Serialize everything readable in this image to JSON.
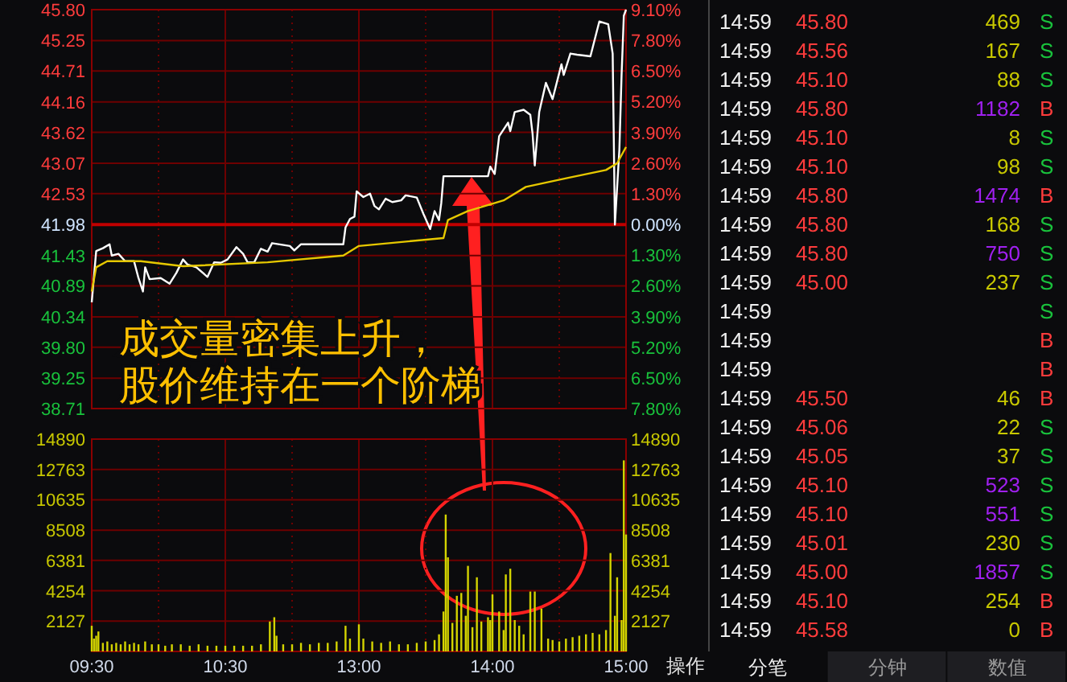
{
  "chart_data": [
    {
      "type": "line",
      "categories": [
        null,
        null,
        null,
        null,
        null,
        null,
        null,
        null,
        null,
        null,
        null,
        null,
        null,
        null,
        null,
        null,
        null,
        null,
        null,
        null,
        null,
        null,
        null,
        null,
        null,
        null,
        null,
        null,
        null,
        null,
        null,
        null,
        null,
        null,
        null,
        null,
        null,
        null,
        null,
        null,
        null,
        null,
        null,
        null,
        null,
        null,
        null,
        null,
        null,
        null,
        null,
        null,
        null,
        null,
        null,
        null,
        null,
        null,
        null,
        null,
        null,
        null,
        null,
        null,
        null,
        null,
        null,
        null,
        null,
        null,
        null,
        null,
        null,
        null,
        null,
        null,
        null,
        null,
        null,
        null,
        null,
        null,
        null,
        null,
        null,
        null,
        null,
        null,
        null,
        null,
        null,
        null,
        null,
        null,
        null,
        null,
        null,
        null,
        null,
        null,
        null,
        null,
        null,
        null,
        null,
        null,
        null,
        null,
        null,
        null,
        null,
        null,
        null,
        null,
        null,
        null,
        null,
        null,
        null,
        null,
        null,
        null,
        null,
        null,
        null,
        null,
        null,
        null,
        null,
        null,
        null,
        null,
        null,
        null,
        null,
        null,
        null,
        null,
        null,
        null,
        null,
        null,
        null,
        null,
        null,
        null,
        null,
        null,
        null,
        null,
        null,
        null,
        null,
        null,
        null,
        null,
        null,
        null,
        null,
        null,
        null,
        null,
        null,
        null,
        null,
        null,
        null,
        null,
        null,
        null,
        null,
        null,
        null,
        null,
        null,
        null,
        null,
        null,
        null,
        null,
        null,
        null,
        null,
        null,
        null,
        null,
        null,
        null,
        null,
        null,
        null,
        null,
        null,
        null,
        null,
        null,
        null,
        null,
        null,
        null,
        null,
        null,
        null,
        null,
        null,
        null,
        null,
        null,
        null,
        null,
        null,
        null,
        null,
        null,
        null,
        null,
        null,
        null,
        null,
        null,
        null,
        null,
        null,
        null,
        null,
        null,
        null,
        null,
        null,
        null,
        null,
        null,
        null,
        null,
        null,
        null,
        null,
        null,
        null,
        null,
        null
      ],
      "series": [
        {
          "color": "#ffffff",
          "values": [
            40.6,
            null,
            41.51,
            null,
            null,
            41.56,
            null,
            null,
            41.63,
            41.43,
            null,
            null,
            41.46,
            null,
            null,
            41.33,
            null,
            null,
            null,
            41.33,
            null,
            41.03,
            null,
            40.79,
            41.22,
            null,
            41.01,
            null,
            null,
            null,
            null,
            41.03,
            null,
            null,
            null,
            40.93,
            null,
            null,
            41.12,
            null,
            null,
            41.36,
            null,
            41.27,
            null,
            null,
            null,
            41.22,
            null,
            null,
            null,
            null,
            41.05,
            null,
            null,
            41.31,
            null,
            null,
            41.3,
            null,
            null,
            41.36,
            null,
            null,
            null,
            41.58,
            null,
            null,
            41.46,
            null,
            41.31,
            null,
            null,
            41.31,
            null,
            null,
            41.55,
            null,
            null,
            41.5,
            null,
            41.65,
            null,
            null,
            null,
            null,
            null,
            null,
            null,
            41.6,
            null,
            41.52,
            null,
            null,
            41.63,
            null,
            null,
            null,
            null,
            null,
            null,
            null,
            null,
            null,
            null,
            null,
            null,
            null,
            null,
            null,
            null,
            null,
            null,
            41.63,
            41.93,
            null,
            42.08,
            null,
            42.12,
            42.57,
            null,
            null,
            42.47,
            null,
            null,
            42.53,
            null,
            42.31,
            null,
            42.25,
            null,
            null,
            42.44,
            null,
            null,
            42.38,
            null,
            null,
            null,
            42.41,
            null,
            42.5,
            null,
            null,
            null,
            null,
            42.46,
            null,
            null,
            42.17,
            null,
            null,
            41.9,
            null,
            42.22,
            null,
            42.06,
            42.36,
            42.84,
            null,
            null,
            null,
            null,
            null,
            null,
            null,
            42.84,
            null,
            null,
            null,
            null,
            null,
            null,
            null,
            null,
            null,
            null,
            null,
            42.84,
            43.01,
            null,
            42.88,
            null,
            43.55,
            null,
            null,
            null,
            43.79,
            43.64,
            null,
            43.98,
            null,
            null,
            null,
            44.02,
            null,
            null,
            43.93,
            43.6,
            43.03,
            null,
            43.98,
            null,
            null,
            44.5,
            null,
            null,
            44.21,
            null,
            null,
            null,
            44.83,
            44.64,
            null,
            null,
            45.02,
            null,
            null,
            45.0,
            null,
            null,
            null,
            null,
            null,
            44.97,
            null,
            null,
            null,
            45.59,
            null,
            null,
            null,
            45.54,
            null,
            45.02,
            41.98,
            null,
            43.31,
            44.64,
            45.69,
            45.8
          ]
        },
        {
          "color": "#e6c800",
          "values": [
            40.79,
            null,
            41.22,
            null,
            null,
            null,
            null,
            41.33,
            null,
            null,
            null,
            null,
            null,
            null,
            null,
            null,
            null,
            null,
            null,
            null,
            null,
            null,
            41.33,
            null,
            null,
            null,
            null,
            null,
            null,
            null,
            null,
            null,
            null,
            null,
            null,
            null,
            null,
            null,
            null,
            null,
            null,
            41.24,
            null,
            null,
            null,
            null,
            null,
            null,
            null,
            null,
            null,
            null,
            null,
            null,
            null,
            null,
            null,
            null,
            null,
            null,
            null,
            null,
            null,
            null,
            null,
            null,
            null,
            null,
            null,
            null,
            null,
            null,
            null,
            null,
            null,
            null,
            null,
            null,
            null,
            41.31,
            null,
            null,
            null,
            null,
            null,
            null,
            null,
            null,
            null,
            null,
            null,
            null,
            null,
            null,
            null,
            null,
            null,
            null,
            null,
            null,
            null,
            null,
            null,
            null,
            null,
            null,
            null,
            null,
            null,
            null,
            null,
            null,
            null,
            41.43,
            null,
            null,
            null,
            null,
            null,
            null,
            41.6,
            null,
            null,
            null,
            null,
            null,
            null,
            null,
            null,
            null,
            null,
            null,
            null,
            null,
            null,
            null,
            null,
            null,
            null,
            null,
            null,
            null,
            null,
            null,
            null,
            null,
            null,
            null,
            null,
            null,
            null,
            null,
            null,
            null,
            null,
            null,
            null,
            null,
            41.74,
            null,
            42.06,
            null,
            null,
            null,
            null,
            null,
            null,
            null,
            null,
            42.22,
            null,
            null,
            null,
            null,
            null,
            null,
            null,
            null,
            null,
            null,
            null,
            null,
            null,
            null,
            null,
            42.41,
            null,
            null,
            null,
            null,
            null,
            null,
            null,
            null,
            null,
            42.65,
            null,
            null,
            null,
            null,
            null,
            null,
            null,
            null,
            null,
            null,
            null,
            null,
            null,
            null,
            null,
            null,
            null,
            null,
            42.81,
            null,
            null,
            null,
            null,
            null,
            null,
            null,
            null,
            null,
            null,
            null,
            null,
            null,
            null,
            null,
            null,
            42.95,
            null,
            null,
            null,
            null,
            43.07,
            null,
            null,
            null,
            43.36
          ]
        }
      ],
      "ylim": [
        38.71,
        45.8
      ],
      "yticks": [
        {
          "value": 45.8,
          "label": "45.80"
        },
        45.25,
        44.71,
        44.16,
        43.62,
        43.07,
        42.53,
        41.98,
        41.43,
        40.89,
        40.34,
        {
          "value": 39.8,
          "label": "39.80"
        },
        39.25,
        38.71
      ],
      "y2lim": [
        -7.8,
        9.1
      ],
      "y2ticks": [
        {
          "value": 9.1,
          "label": "9.10%"
        },
        {
          "value": 7.8,
          "label": "7.80%"
        },
        {
          "value": 6.5,
          "label": "6.50%"
        },
        {
          "value": 5.2,
          "label": "5.20%"
        },
        {
          "value": 3.9,
          "label": "3.90%"
        },
        {
          "value": 2.6,
          "label": "2.60%"
        },
        {
          "value": 1.3,
          "label": "1.30%"
        },
        {
          "value": 0,
          "label": "0.00%"
        },
        {
          "value": -1.3,
          "label": "1.30%"
        },
        {
          "value": -2.6,
          "label": "2.60%"
        },
        {
          "value": -3.9,
          "label": "3.90%"
        },
        {
          "value": -5.2,
          "label": "5.20%"
        },
        {
          "value": -6.5,
          "label": "6.50%"
        },
        {
          "value": -7.8,
          "label": "7.80%"
        }
      ],
      "ref_lines": [
        {
          "axis": "y",
          "value": 41.98,
          "color": "#c00000"
        }
      ],
      "grid": true,
      "tick_labels": [
        "y",
        "y2"
      ],
      "annotations": [
        "成交量密集上升，",
        "股价维持在一个阶梯"
      ]
    },
    {
      "type": "bar",
      "color": "#d4d400",
      "categories": [
        "09:30",
        null,
        null,
        null,
        null,
        null,
        null,
        null,
        null,
        null,
        null,
        null,
        null,
        null,
        null,
        null,
        null,
        null,
        null,
        null,
        null,
        null,
        null,
        null,
        null,
        null,
        null,
        null,
        null,
        null,
        null,
        null,
        null,
        null,
        null,
        null,
        null,
        null,
        null,
        null,
        null,
        null,
        null,
        null,
        null,
        null,
        null,
        null,
        null,
        null,
        null,
        null,
        null,
        null,
        null,
        null,
        null,
        null,
        null,
        null,
        "10:30",
        null,
        null,
        null,
        null,
        null,
        null,
        null,
        null,
        null,
        null,
        null,
        null,
        null,
        null,
        null,
        null,
        null,
        null,
        null,
        null,
        null,
        null,
        null,
        null,
        null,
        null,
        null,
        null,
        null,
        null,
        null,
        null,
        null,
        null,
        null,
        null,
        null,
        null,
        null,
        null,
        null,
        null,
        null,
        null,
        null,
        null,
        null,
        null,
        null,
        null,
        null,
        null,
        null,
        null,
        null,
        null,
        null,
        null,
        null,
        "13:00",
        null,
        null,
        null,
        null,
        null,
        null,
        null,
        null,
        null,
        null,
        null,
        null,
        null,
        null,
        null,
        null,
        null,
        null,
        null,
        null,
        null,
        null,
        null,
        null,
        null,
        null,
        null,
        null,
        null,
        null,
        null,
        null,
        null,
        null,
        null,
        null,
        null,
        null,
        null,
        null,
        null,
        null,
        null,
        null,
        null,
        null,
        null,
        null,
        null,
        null,
        null,
        null,
        null,
        null,
        null,
        null,
        null,
        null,
        null,
        "14:00",
        null,
        null,
        null,
        null,
        null,
        null,
        null,
        null,
        null,
        null,
        null,
        null,
        null,
        null,
        null,
        null,
        null,
        null,
        null,
        null,
        null,
        null,
        null,
        null,
        null,
        null,
        null,
        null,
        null,
        null,
        null,
        null,
        null,
        null,
        null,
        null,
        null,
        null,
        null,
        null,
        null,
        null,
        null,
        null,
        null,
        null,
        null,
        null,
        null,
        null,
        null,
        null,
        null,
        null,
        null,
        null,
        null,
        null,
        null,
        "15:00"
      ],
      "values": [
        1800,
        900,
        1100,
        1400,
        null,
        600,
        null,
        700,
        null,
        500,
        null,
        600,
        null,
        500,
        null,
        700,
        null,
        500,
        null,
        600,
        null,
        500,
        null,
        null,
        700,
        null,
        null,
        500,
        null,
        null,
        500,
        null,
        null,
        400,
        null,
        null,
        500,
        null,
        null,
        null,
        500,
        null,
        null,
        null,
        400,
        null,
        null,
        null,
        500,
        null,
        null,
        null,
        400,
        null,
        null,
        null,
        400,
        null,
        null,
        null,
        400,
        null,
        null,
        null,
        400,
        null,
        null,
        null,
        400,
        null,
        null,
        null,
        400,
        null,
        null,
        null,
        500,
        null,
        null,
        null,
        2100,
        null,
        2400,
        1100,
        null,
        null,
        500,
        null,
        null,
        null,
        500,
        null,
        null,
        null,
        600,
        null,
        null,
        null,
        500,
        null,
        null,
        null,
        600,
        null,
        null,
        null,
        600,
        null,
        null,
        null,
        700,
        null,
        null,
        null,
        1800,
        null,
        900,
        null,
        null,
        null,
        1900,
        null,
        900,
        null,
        null,
        null,
        700,
        null,
        null,
        null,
        600,
        null,
        null,
        null,
        700,
        null,
        null,
        null,
        500,
        null,
        null,
        null,
        500,
        null,
        null,
        null,
        600,
        null,
        null,
        null,
        700,
        null,
        null,
        null,
        800,
        null,
        1200,
        null,
        2800,
        9600,
        6600,
        null,
        2000,
        null,
        3900,
        null,
        4100,
        null,
        2500,
        6000,
        null,
        1700,
        null,
        5200,
        null,
        2100,
        null,
        null,
        2400,
        2200,
        4000,
        null,
        null,
        2800,
        null,
        1500,
        5400,
        null,
        5800,
        null,
        2200,
        null,
        1800,
        null,
        1200,
        null,
        null,
        4200,
        null,
        4200,
        null,
        null,
        3000,
        null,
        null,
        900,
        null,
        800,
        null,
        null,
        700,
        null,
        null,
        900,
        null,
        null,
        1000,
        null,
        null,
        1100,
        null,
        null,
        1200,
        null,
        null,
        1300,
        null,
        null,
        1200,
        null,
        null,
        1500,
        null,
        6900,
        null,
        2500,
        5200,
        null,
        2200,
        13400,
        8200
      ],
      "ylim": [
        0,
        14890
      ],
      "yticks": [
        2127,
        4254,
        6381,
        8508,
        10635,
        12763,
        14890
      ],
      "y2lim": [
        0,
        14890
      ],
      "y2ticks": [
        2127,
        4254,
        6381,
        8508,
        10635,
        12763,
        14890
      ],
      "grid": true,
      "annotations": [
        "操作"
      ]
    },
    {
      "type": "other",
      "annotations": [
        [
          "14:59",
          "45.80",
          "469",
          "S"
        ],
        [
          "14:59",
          "45.56",
          "167",
          "S"
        ],
        [
          "14:59",
          "45.10",
          "88",
          "S"
        ],
        [
          "14:59",
          "45.80",
          "1182",
          "B"
        ],
        [
          "14:59",
          "45.10",
          "8",
          "S"
        ],
        [
          "14:59",
          "45.10",
          "98",
          "S"
        ],
        [
          "14:59",
          "45.80",
          "1474",
          "B"
        ],
        [
          "14:59",
          "45.80",
          "168",
          "S"
        ],
        [
          "14:59",
          "45.80",
          "750",
          "S"
        ],
        [
          "14:59",
          "45.00",
          "237",
          "S"
        ],
        [
          "14:59",
          null,
          null,
          "S"
        ],
        [
          "14:59",
          null,
          null,
          "B"
        ],
        [
          "14:59",
          null,
          null,
          "B"
        ],
        [
          "14:59",
          "45.50",
          "46",
          "B"
        ],
        [
          "14:59",
          "45.06",
          "22",
          "S"
        ],
        [
          "14:59",
          "45.05",
          "37",
          "S"
        ],
        [
          "14:59",
          "45.10",
          "523",
          "S"
        ],
        [
          "14:59",
          "45.10",
          "551",
          "S"
        ],
        [
          "14:59",
          "45.01",
          "230",
          "S"
        ],
        [
          "14:59",
          "45.00",
          "1857",
          "S"
        ],
        [
          "14:59",
          "45.10",
          "254",
          "B"
        ],
        [
          "14:59",
          "45.58",
          "0",
          "B"
        ],
        "分笔",
        "分钟",
        "数值"
      ]
    }
  ]
}
